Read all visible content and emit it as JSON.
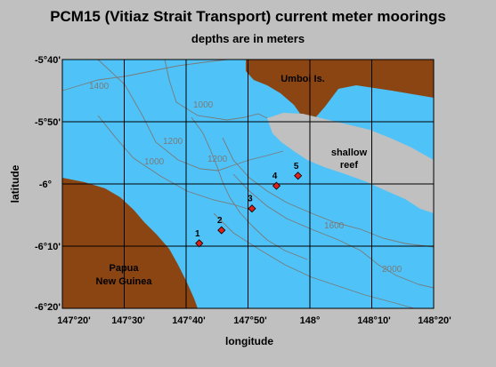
{
  "title": "PCM15 (Vitiaz Strait Transport) current meter moorings",
  "subtitle": "depths are in meters",
  "axes": {
    "xlabel": "longitude",
    "ylabel": "latitude",
    "x_ticks": [
      "147°20'",
      "147°30'",
      "147°40'",
      "147°50'",
      "148°",
      "148°10'",
      "148°20'"
    ],
    "y_ticks": [
      "-5°40'",
      "-5°50'",
      "-6°",
      "-6°10'",
      "-6°20'"
    ]
  },
  "places": {
    "umboi": "Umboi Is.",
    "shallow_reef_line1": "shallow",
    "shallow_reef_line2": "reef",
    "png_line1": "Papua",
    "png_line2": "New Guinea"
  },
  "contour_labels": [
    "1400",
    "1000",
    "1200",
    "1000",
    "1200",
    "1600",
    "2000"
  ],
  "moorings": [
    {
      "label": "1",
      "lon": 147.702,
      "lat": -6.159
    },
    {
      "label": "2",
      "lon": 147.762,
      "lat": -6.124
    },
    {
      "label": "3",
      "lon": 147.844,
      "lat": -6.066
    },
    {
      "label": "4",
      "lon": 147.91,
      "lat": -6.005
    },
    {
      "label": "5",
      "lon": 147.968,
      "lat": -5.978
    }
  ],
  "colors": {
    "ocean": "#4fc3f7",
    "land": "#8b4513",
    "reef": "#c0c0c0",
    "contour": "#7a7a7a",
    "marker": "#e0201a"
  }
}
